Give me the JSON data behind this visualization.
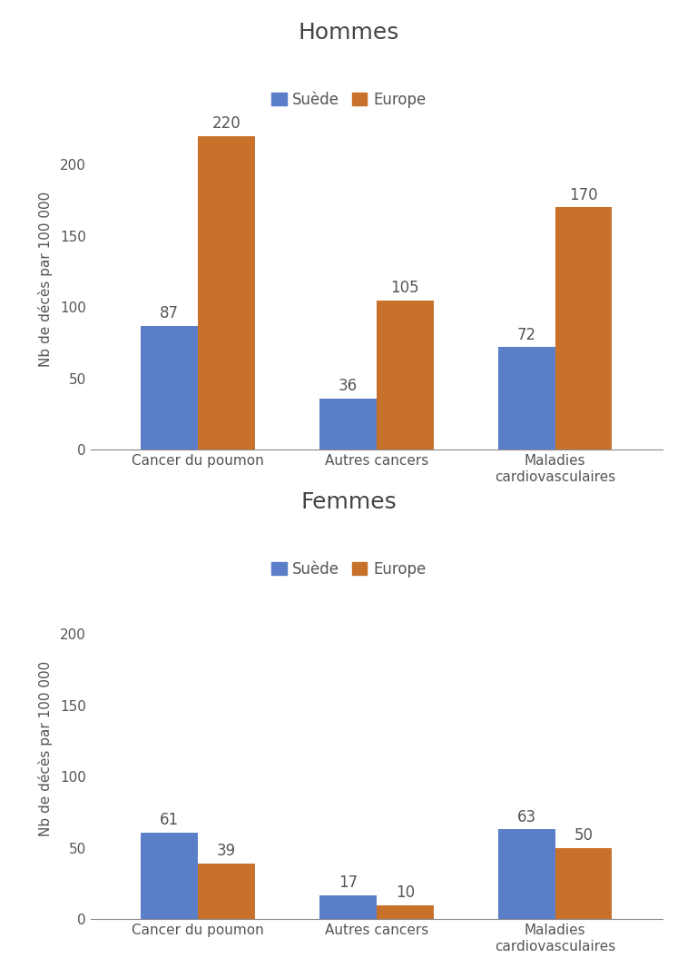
{
  "hommes": {
    "title": "Hommes",
    "categories": [
      "Cancer du poumon",
      "Autres cancers",
      "Maladies\ncardiovasculaires"
    ],
    "suede": [
      87,
      36,
      72
    ],
    "europe": [
      220,
      105,
      170
    ],
    "ylim": [
      0,
      240
    ]
  },
  "femmes": {
    "title": "Femmes",
    "categories": [
      "Cancer du poumon",
      "Autres cancers",
      "Maladies\ncardiovasculaires"
    ],
    "suede": [
      61,
      17,
      63
    ],
    "europe": [
      39,
      10,
      50
    ],
    "ylim": [
      0,
      240
    ]
  },
  "color_suede": "#5B7EC9",
  "color_europe": "#C8712A",
  "ylabel": "Nb de décès par 100 000",
  "legend_suede": "Suède",
  "legend_europe": "Europe",
  "bar_width": 0.32,
  "title_fontsize": 18,
  "label_fontsize": 11,
  "tick_fontsize": 11,
  "value_fontsize": 12,
  "legend_fontsize": 12,
  "yticks": [
    0,
    50,
    100,
    150,
    200
  ]
}
